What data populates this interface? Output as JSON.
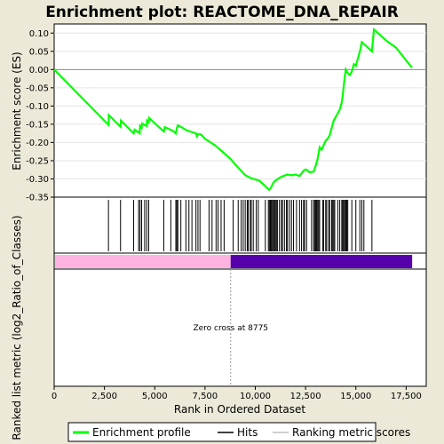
{
  "chart_data": {
    "type": "line",
    "title": "Enrichment plot: REACTOME_DNA_REPAIR",
    "xlabel": "Rank in Ordered Dataset",
    "ylabel_top": "Enrichment score (ES)",
    "ylabel_bottom": "Ranked list metric (log2_Ratio_of_Classes)",
    "xlim": [
      0,
      18500
    ],
    "ylim": [
      -0.35,
      0.125
    ],
    "x_ticks": [
      {
        "value": 0,
        "label": "0"
      },
      {
        "value": 2500,
        "label": "2,500"
      },
      {
        "value": 5000,
        "label": "5,000"
      },
      {
        "value": 7500,
        "label": "7,500"
      },
      {
        "value": 10000,
        "label": "10,000"
      },
      {
        "value": 12500,
        "label": "12,500"
      },
      {
        "value": 15000,
        "label": "15,000"
      },
      {
        "value": 17500,
        "label": "17,500"
      }
    ],
    "y_ticks": [
      {
        "value": 0.1,
        "label": "0.10"
      },
      {
        "value": 0.05,
        "label": "0.05"
      },
      {
        "value": 0.0,
        "label": "0.00"
      },
      {
        "value": -0.05,
        "label": "-0.05"
      },
      {
        "value": -0.1,
        "label": "-0.10"
      },
      {
        "value": -0.15,
        "label": "-0.15"
      },
      {
        "value": -0.2,
        "label": "-0.20"
      },
      {
        "value": -0.25,
        "label": "-0.25"
      },
      {
        "value": -0.3,
        "label": "-0.30"
      },
      {
        "value": -0.35,
        "label": "-0.35"
      }
    ],
    "grid": true,
    "legend_position": "bottom",
    "series": [
      {
        "name": "Enrichment profile",
        "color": "#00ff00",
        "x": [
          0,
          2700,
          2720,
          3300,
          3320,
          3950,
          4000,
          4250,
          4270,
          4350,
          4370,
          4600,
          4620,
          4700,
          4720,
          5450,
          5500,
          5900,
          6050,
          6100,
          6150,
          6300,
          6600,
          7050,
          7100,
          7150,
          7300,
          7500,
          8000,
          8300,
          8800,
          9000,
          9300,
          9500,
          9800,
          10200,
          10300,
          10400,
          10500,
          10600,
          10700,
          10800,
          10900,
          11000,
          11200,
          11400,
          11600,
          11800,
          12000,
          12200,
          12300,
          12400,
          12500,
          12600,
          12700,
          12900,
          13000,
          13100,
          13200,
          13300,
          13400,
          13500,
          13600,
          13700,
          13800,
          13900,
          14000,
          14100,
          14200,
          14300,
          14350,
          14400,
          14450,
          14500,
          14600,
          14700,
          14800,
          14900,
          15000,
          15100,
          15200,
          15300,
          15400,
          15500,
          15600,
          15700,
          15800,
          15900,
          16000,
          16500,
          17000,
          17500,
          17800
        ],
        "values": [
          0.0,
          -0.152,
          -0.125,
          -0.157,
          -0.14,
          -0.175,
          -0.165,
          -0.175,
          -0.155,
          -0.16,
          -0.148,
          -0.155,
          -0.14,
          -0.145,
          -0.133,
          -0.17,
          -0.158,
          -0.168,
          -0.175,
          -0.16,
          -0.153,
          -0.157,
          -0.167,
          -0.175,
          -0.183,
          -0.177,
          -0.178,
          -0.19,
          -0.208,
          -0.222,
          -0.247,
          -0.26,
          -0.278,
          -0.29,
          -0.298,
          -0.305,
          -0.31,
          -0.315,
          -0.32,
          -0.326,
          -0.33,
          -0.322,
          -0.31,
          -0.305,
          -0.297,
          -0.292,
          -0.288,
          -0.29,
          -0.288,
          -0.292,
          -0.285,
          -0.278,
          -0.274,
          -0.277,
          -0.282,
          -0.28,
          -0.265,
          -0.245,
          -0.213,
          -0.22,
          -0.207,
          -0.195,
          -0.19,
          -0.18,
          -0.16,
          -0.14,
          -0.13,
          -0.12,
          -0.11,
          -0.09,
          -0.07,
          -0.045,
          -0.02,
          0.0,
          -0.01,
          -0.015,
          -0.005,
          0.015,
          0.01,
          0.03,
          0.05,
          0.075,
          0.07,
          0.065,
          0.06,
          0.055,
          0.05,
          0.11,
          0.105,
          0.08,
          0.06,
          0.025,
          0.005
        ]
      }
    ],
    "hits": [
      2700,
      3300,
      3950,
      4200,
      4270,
      4350,
      4500,
      4600,
      4700,
      5450,
      5800,
      6050,
      6100,
      6150,
      6300,
      6550,
      6700,
      6850,
      7050,
      7150,
      7250,
      7700,
      7850,
      8050,
      8150,
      8300,
      8450,
      8900,
      9150,
      9300,
      9400,
      9500,
      9600,
      9650,
      9750,
      9800,
      9900,
      10050,
      10150,
      10500,
      10650,
      10700,
      10750,
      10800,
      10850,
      10900,
      10950,
      11000,
      11050,
      11100,
      11200,
      11300,
      11350,
      11450,
      11550,
      11600,
      11700,
      11800,
      11900,
      12050,
      12200,
      12300,
      12400,
      12450,
      12550,
      12800,
      12900,
      12950,
      13000,
      13050,
      13100,
      13150,
      13200,
      13350,
      13400,
      13500,
      13550,
      13650,
      13700,
      13800,
      13850,
      13900,
      13950,
      14100,
      14200,
      14300,
      14350,
      14400,
      14450,
      14500,
      14550,
      14600,
      14800,
      15000,
      15200,
      15300,
      15400,
      15800
    ],
    "metric_bar": {
      "zero_cross": 8775,
      "annotation": "Zero cross at 8775",
      "positive_color": "#ffb3e0",
      "negative_color": "#5500aa",
      "end": 17800
    },
    "legend": [
      {
        "label": "Enrichment profile",
        "color": "#00ff00",
        "kind": "thick-line"
      },
      {
        "label": "Hits",
        "color": "#000000",
        "kind": "line"
      },
      {
        "label": "Ranking metric scores",
        "color": "#c0c0c0",
        "kind": "line"
      }
    ]
  }
}
